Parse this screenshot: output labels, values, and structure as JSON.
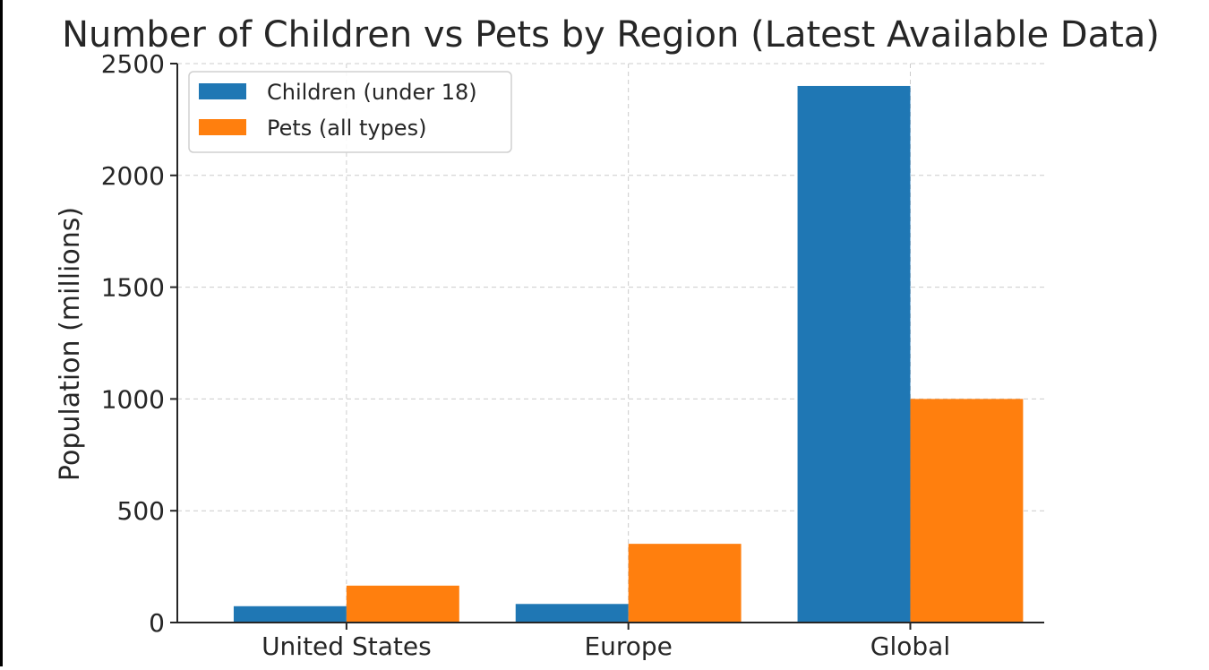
{
  "chart_data": {
    "type": "bar",
    "title": "Number of Children vs Pets by Region (Latest Available Data)",
    "xlabel": "",
    "ylabel": "Population (millions)",
    "categories": [
      "United States",
      "Europe",
      "Global"
    ],
    "series": [
      {
        "name": "Children (under 18)",
        "color": "#1f77b4",
        "values": [
          73,
          83,
          2400
        ]
      },
      {
        "name": "Pets (all types)",
        "color": "#ff7f0e",
        "values": [
          165,
          352,
          1000
        ]
      }
    ],
    "ylim": [
      0,
      2500
    ],
    "yticks": [
      0,
      500,
      1000,
      1500,
      2000,
      2500
    ],
    "grid": true,
    "legend_position": "top-left"
  }
}
